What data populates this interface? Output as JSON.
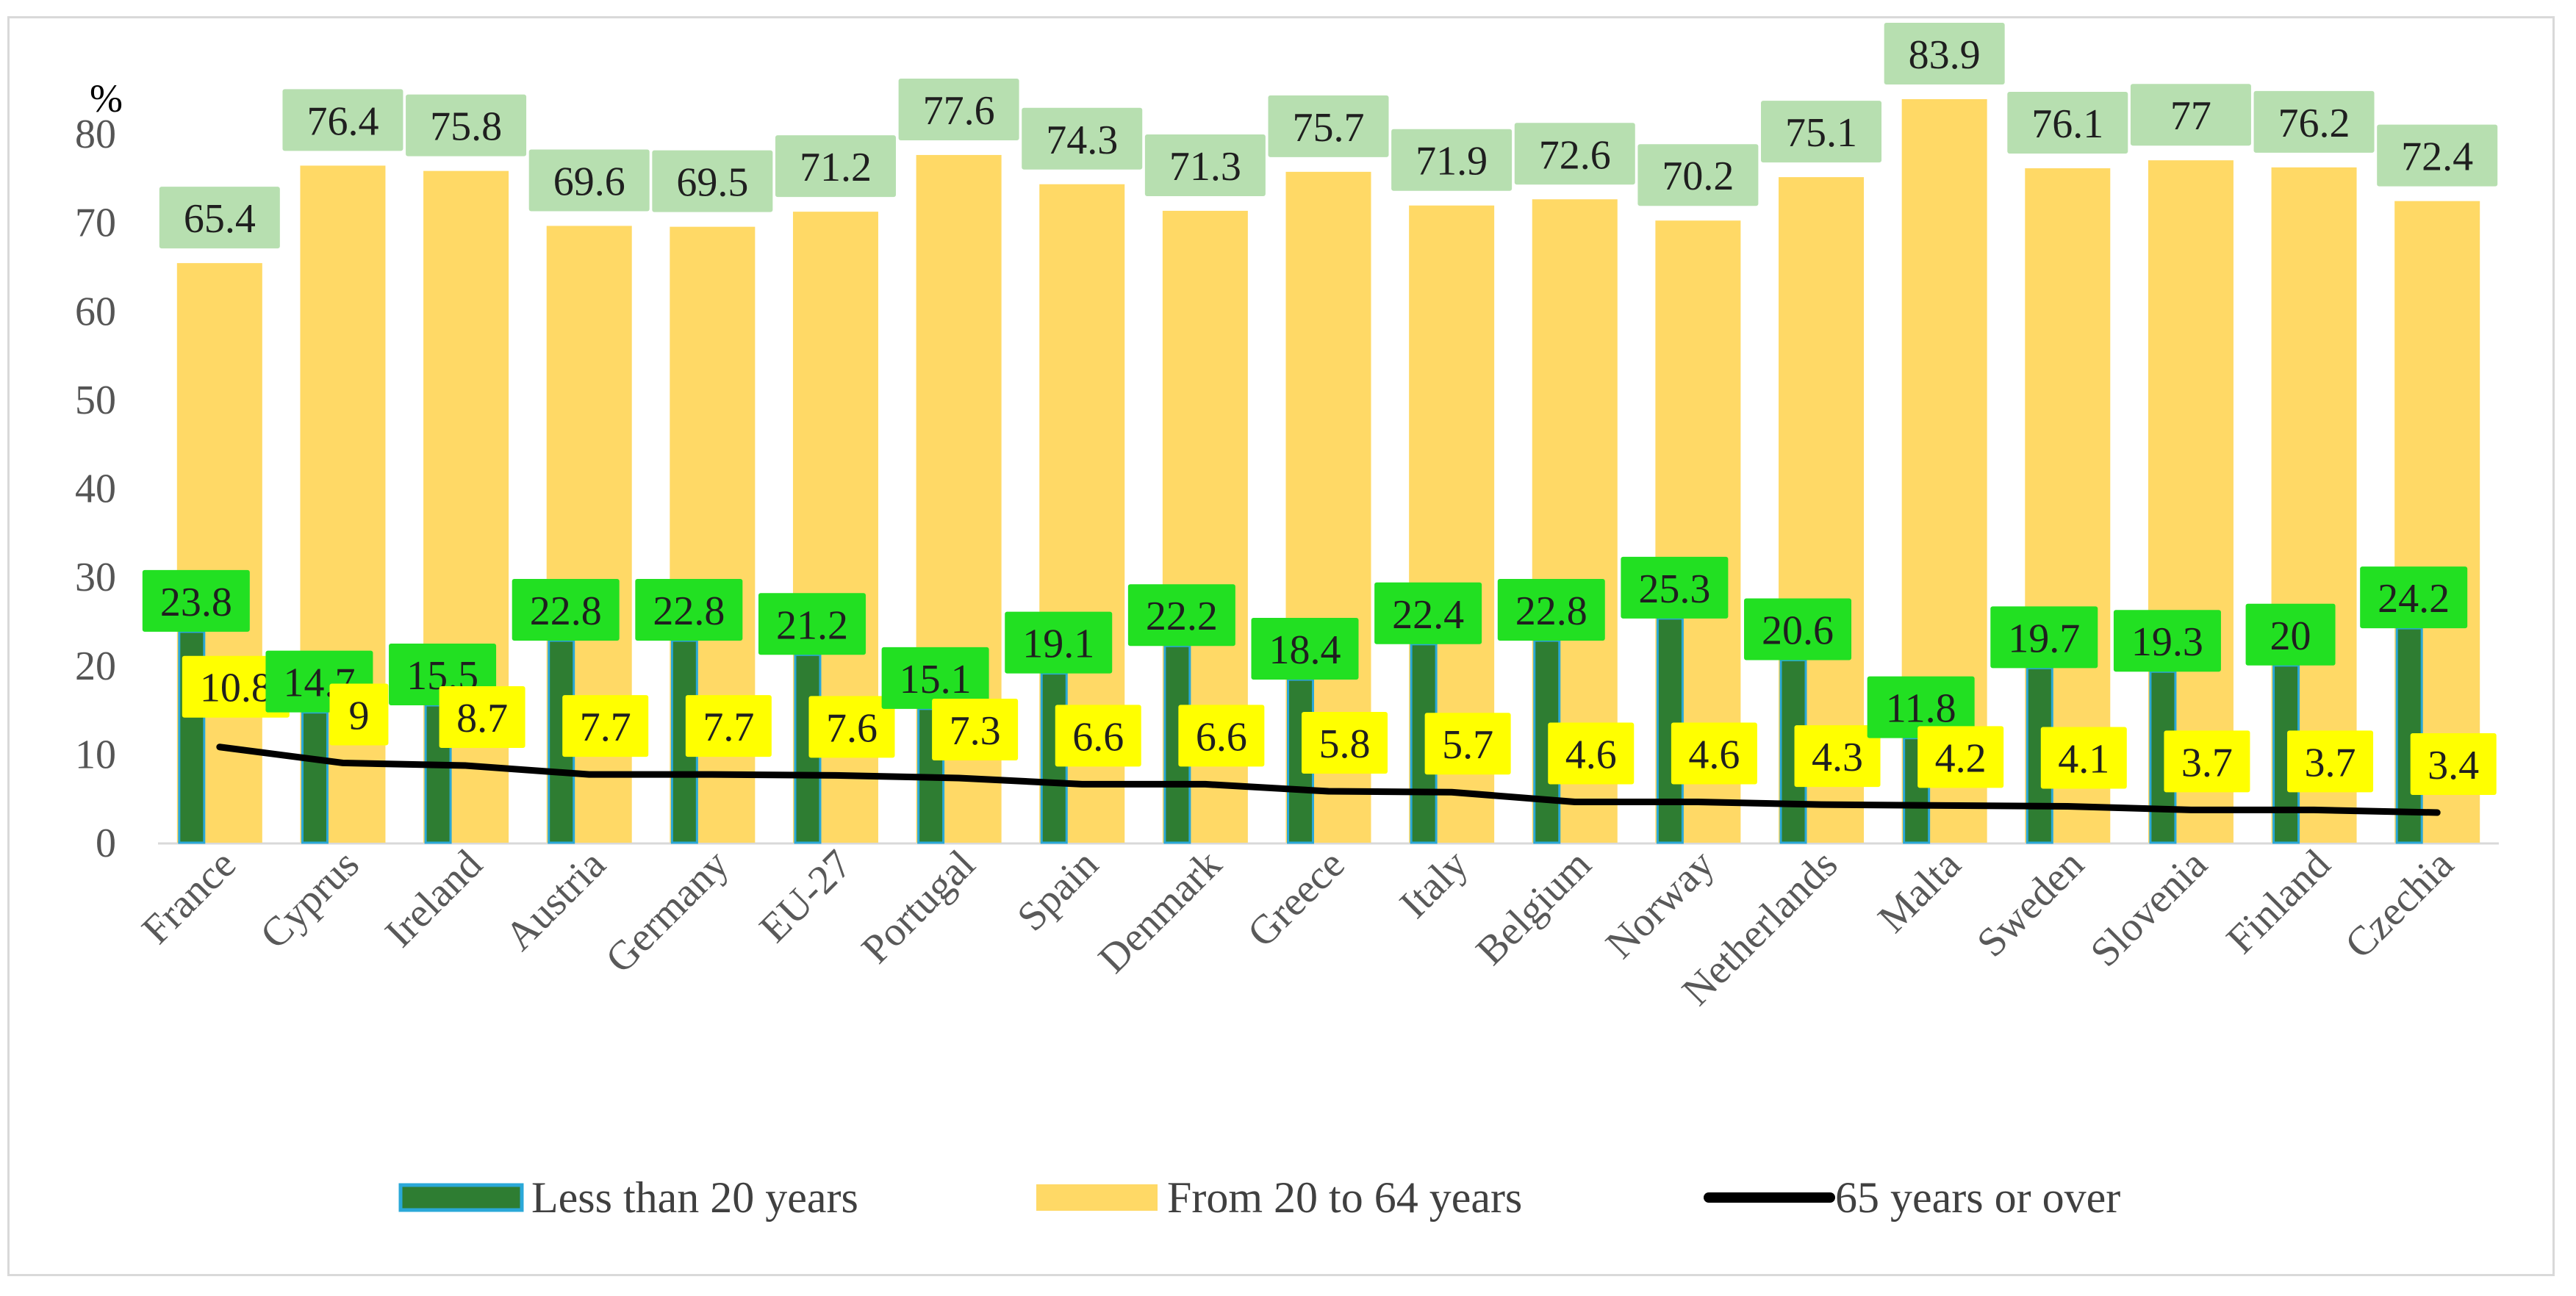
{
  "chart_data": {
    "type": "bar",
    "title": "",
    "xlabel": "",
    "ylabel": "%",
    "ylim": [
      0,
      80
    ],
    "yticks": [
      "0",
      "10",
      "20",
      "30",
      "40",
      "50",
      "60",
      "70",
      "80"
    ],
    "grid": false,
    "legend_position": "bottom",
    "categories": [
      "France",
      "Cyprus",
      "Ireland",
      "Austria",
      "Germany",
      "EU-27",
      "Portugal",
      "Spain",
      "Denmark",
      "Greece",
      "Italy",
      "Belgium",
      "Norway",
      "Netherlands",
      "Malta",
      "Sweden",
      "Slovenia",
      "Finland",
      "Czechia"
    ],
    "series": [
      {
        "name": "Less than 20 years",
        "kind": "bar",
        "color": "#2e7d32",
        "label_bg": "#22e022",
        "values": [
          23.8,
          14.7,
          15.5,
          22.8,
          22.8,
          21.2,
          15.1,
          19.1,
          22.2,
          18.4,
          22.4,
          22.8,
          25.3,
          20.6,
          11.8,
          19.7,
          19.3,
          20,
          24.2
        ],
        "labels": [
          "23.8",
          "14.7",
          "15.5",
          "22.8",
          "22.8",
          "21.2",
          "15.1",
          "19.1",
          "22.2",
          "18.4",
          "22.4",
          "22.8",
          "25.3",
          "20.6",
          "11.8",
          "19.7",
          "19.3",
          "20",
          "24.2"
        ]
      },
      {
        "name": "From 20 to 64 years",
        "kind": "bar",
        "color": "#ffd966",
        "label_bg": "#b7dfb0",
        "values": [
          65.4,
          76.4,
          75.8,
          69.6,
          69.5,
          71.2,
          77.6,
          74.3,
          71.3,
          75.7,
          71.9,
          72.6,
          70.2,
          75.1,
          83.9,
          76.1,
          77,
          76.2,
          72.4
        ],
        "labels": [
          "65.4",
          "76.4",
          "75.8",
          "69.6",
          "69.5",
          "71.2",
          "77.6",
          "74.3",
          "71.3",
          "75.7",
          "71.9",
          "72.6",
          "70.2",
          "75.1",
          "83.9",
          "76.1",
          "77",
          "76.2",
          "72.4"
        ]
      },
      {
        "name": "65 years or over",
        "kind": "line",
        "color": "#000000",
        "label_bg": "#ffff00",
        "values": [
          10.8,
          9,
          8.7,
          7.7,
          7.7,
          7.6,
          7.3,
          6.6,
          6.6,
          5.8,
          5.7,
          4.6,
          4.6,
          4.3,
          4.2,
          4.1,
          3.7,
          3.7,
          3.4
        ],
        "labels": [
          "10.8",
          "9",
          "8.7",
          "7.7",
          "7.7",
          "7.6",
          "7.3",
          "6.6",
          "6.6",
          "5.8",
          "5.7",
          "4.6",
          "4.6",
          "4.3",
          "4.2",
          "4.1",
          "3.7",
          "3.7",
          "3.4"
        ]
      }
    ]
  }
}
